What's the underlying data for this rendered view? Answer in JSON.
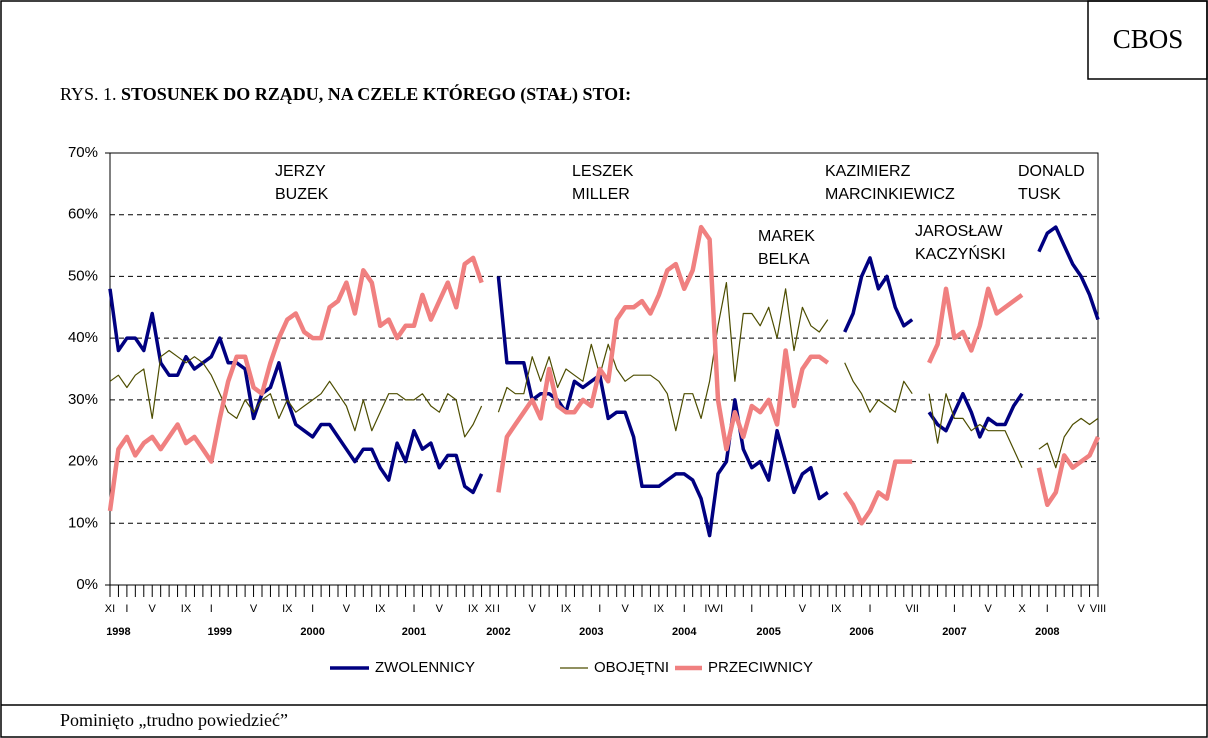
{
  "chart_data": {
    "type": "line",
    "badge": "CBOS",
    "title_prefix": "RYS. 1.",
    "title": "STOSUNEK DO RZĄDU, NA CZELE KTÓREGO (STAŁ) STOI:",
    "footnote": "Pominięto „trudno powiedzieć”",
    "annotations": [
      [
        "JERZY",
        "BUZEK"
      ],
      [
        "LESZEK",
        "MILLER"
      ],
      [
        "MAREK",
        "BELKA"
      ],
      [
        "KAZIMIERZ",
        "MARCINKIEWICZ"
      ],
      [
        "JAROSŁAW",
        "KACZYŃSKI"
      ],
      [
        "DONALD",
        "TUSK"
      ]
    ],
    "ylim": [
      0,
      70
    ],
    "yticks": [
      {
        "value": 0,
        "label": "0%"
      },
      {
        "value": 10,
        "label": "10%"
      },
      {
        "value": 20,
        "label": "20%"
      },
      {
        "value": 30,
        "label": "30%"
      },
      {
        "value": 40,
        "label": "40%"
      },
      {
        "value": 50,
        "label": "50%"
      },
      {
        "value": 60,
        "label": "60%"
      },
      {
        "value": 70,
        "label": "70%"
      }
    ],
    "grid": true,
    "categories": [
      "XI",
      null,
      "I",
      null,
      null,
      "V",
      null,
      null,
      null,
      "IX",
      null,
      null,
      "I",
      null,
      null,
      null,
      null,
      "V",
      null,
      null,
      null,
      "IX",
      null,
      null,
      "I",
      null,
      null,
      null,
      "V",
      null,
      null,
      null,
      "IX",
      null,
      null,
      null,
      "I",
      null,
      null,
      "V",
      null,
      null,
      null,
      "IX",
      null,
      "XI",
      "I",
      null,
      null,
      null,
      "V",
      null,
      null,
      null,
      "IX",
      null,
      null,
      null,
      "I",
      null,
      null,
      "V",
      null,
      null,
      null,
      "IX",
      null,
      null,
      "I",
      null,
      null,
      "IV",
      "VI",
      null,
      null,
      null,
      "I",
      null,
      null,
      null,
      null,
      null,
      "V",
      null,
      null,
      null,
      "IX",
      null,
      null,
      null,
      "I",
      null,
      null,
      null,
      null,
      "VII",
      null,
      null,
      null,
      null,
      "I",
      null,
      null,
      null,
      "V",
      null,
      null,
      null,
      "X",
      null,
      null,
      "I",
      null,
      null,
      null,
      "V",
      null,
      "VIII"
    ],
    "years": [
      null,
      "1998",
      null,
      null,
      null,
      null,
      null,
      null,
      null,
      null,
      null,
      null,
      null,
      "1999",
      null,
      null,
      null,
      null,
      null,
      null,
      null,
      null,
      null,
      null,
      "2000",
      null,
      null,
      null,
      null,
      null,
      null,
      null,
      null,
      null,
      null,
      null,
      "2001",
      null,
      null,
      null,
      null,
      null,
      null,
      null,
      null,
      null,
      "2002",
      null,
      null,
      null,
      null,
      null,
      null,
      null,
      null,
      null,
      null,
      "2003",
      null,
      null,
      null,
      null,
      null,
      null,
      null,
      null,
      null,
      null,
      "2004",
      null,
      null,
      null,
      null,
      null,
      null,
      null,
      null,
      null,
      "2005",
      null,
      null,
      null,
      null,
      null,
      null,
      null,
      null,
      null,
      null,
      "2006",
      null,
      null,
      null,
      null,
      null,
      null,
      null,
      null,
      null,
      null,
      "2007",
      null,
      null,
      null,
      null,
      null,
      null,
      null,
      null,
      null,
      null,
      "2008",
      null,
      null,
      null,
      null,
      null,
      null
    ],
    "series": [
      {
        "name": "ZWOLENNICY",
        "color": "#000080",
        "values": [
          48,
          38,
          40,
          40,
          38,
          44,
          36,
          34,
          34,
          37,
          35,
          36,
          37,
          40,
          36,
          36,
          35,
          27,
          31,
          32,
          36,
          30,
          26,
          25,
          24,
          26,
          26,
          24,
          22,
          20,
          22,
          22,
          19,
          17,
          23,
          20,
          25,
          22,
          23,
          19,
          21,
          21,
          16,
          15,
          18,
          null,
          50,
          36,
          36,
          36,
          30,
          31,
          31,
          30,
          28,
          33,
          32,
          33,
          34,
          27,
          28,
          28,
          24,
          16,
          16,
          16,
          17,
          18,
          18,
          17,
          14,
          8,
          18,
          20,
          30,
          22,
          19,
          20,
          17,
          25,
          20,
          15,
          18,
          19,
          14,
          15,
          null,
          41,
          44,
          50,
          53,
          48,
          50,
          45,
          42,
          43,
          null,
          28,
          26,
          25,
          28,
          31,
          28,
          24,
          27,
          26,
          26,
          29,
          31,
          null,
          54,
          57,
          58,
          55,
          52,
          50,
          47,
          43
        ]
      },
      {
        "name": "OBOJĘTNI",
        "color": "#4d4d00",
        "values": [
          33,
          34,
          32,
          34,
          35,
          27,
          37,
          38,
          37,
          36,
          37,
          36,
          34,
          31,
          28,
          27,
          30,
          28,
          30,
          31,
          27,
          30,
          28,
          29,
          30,
          31,
          33,
          31,
          29,
          25,
          30,
          25,
          28,
          31,
          31,
          30,
          30,
          31,
          29,
          28,
          31,
          30,
          24,
          26,
          29,
          null,
          28,
          32,
          31,
          31,
          37,
          33,
          37,
          32,
          35,
          34,
          33,
          39,
          34,
          39,
          35,
          33,
          34,
          34,
          34,
          33,
          31,
          25,
          31,
          31,
          27,
          33,
          42,
          49,
          33,
          44,
          44,
          42,
          45,
          40,
          48,
          38,
          45,
          42,
          41,
          43,
          null,
          36,
          33,
          31,
          28,
          30,
          29,
          28,
          33,
          31,
          null,
          31,
          23,
          31,
          27,
          27,
          25,
          26,
          25,
          25,
          25,
          22,
          19,
          null,
          22,
          23,
          19,
          24,
          26,
          27,
          26,
          27
        ]
      },
      {
        "name": "PRZECIWNICY",
        "color": "#f08080",
        "values": [
          12,
          22,
          24,
          21,
          23,
          24,
          22,
          24,
          26,
          23,
          24,
          22,
          20,
          27,
          33,
          37,
          37,
          32,
          31,
          36,
          40,
          43,
          44,
          41,
          40,
          40,
          45,
          46,
          49,
          44,
          51,
          49,
          42,
          43,
          40,
          42,
          42,
          47,
          43,
          46,
          49,
          45,
          52,
          53,
          49,
          null,
          15,
          24,
          26,
          28,
          30,
          27,
          35,
          29,
          28,
          28,
          30,
          29,
          35,
          33,
          43,
          45,
          45,
          46,
          44,
          47,
          51,
          52,
          48,
          51,
          58,
          56,
          30,
          22,
          28,
          24,
          29,
          28,
          30,
          26,
          38,
          29,
          35,
          37,
          37,
          36,
          null,
          15,
          13,
          10,
          12,
          15,
          14,
          20,
          20,
          20,
          null,
          36,
          39,
          48,
          40,
          41,
          38,
          42,
          48,
          44,
          45,
          46,
          47,
          null,
          19,
          13,
          15,
          21,
          19,
          20,
          21,
          24
        ]
      }
    ]
  }
}
